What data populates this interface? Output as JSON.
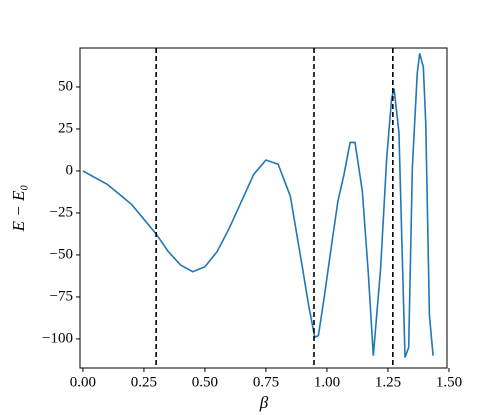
{
  "chart_data": {
    "type": "line",
    "x_label": "β",
    "y_label": "E − E₀",
    "x": [
      0,
      0.1,
      0.2,
      0.3,
      0.35,
      0.4,
      0.45,
      0.5,
      0.55,
      0.6,
      0.65,
      0.7,
      0.75,
      0.8,
      0.85,
      0.9,
      0.925,
      0.95,
      0.965,
      0.99,
      1.02,
      1.045,
      1.07,
      1.095,
      1.115,
      1.145,
      1.17,
      1.19,
      1.22,
      1.245,
      1.265,
      1.275,
      1.295,
      1.32,
      1.335,
      1.35,
      1.37,
      1.38,
      1.395,
      1.405,
      1.42,
      1.435
    ],
    "series": [
      {
        "color": "#1f77b4",
        "values": [
          0,
          -8,
          -20,
          -37.5,
          -48,
          -56,
          -60,
          -57,
          -48,
          -34,
          -18,
          -2,
          6.5,
          4,
          -15,
          -58,
          -80,
          -99,
          -98,
          -74,
          -43,
          -18,
          -2,
          17,
          17,
          -12,
          -62,
          -110,
          -58,
          8,
          43,
          49,
          23,
          -111,
          -105,
          2,
          58,
          70,
          62,
          28,
          -86,
          -110
        ]
      }
    ],
    "vlines": [
      0.3,
      0.947,
      1.27
    ],
    "vline_color": "#000000",
    "xlim": [
      -0.012,
      1.492
    ],
    "ylim": [
      -117.3,
      73.2
    ],
    "xticks": [
      {
        "value": 0,
        "label": "0.00"
      },
      {
        "value": 0.25,
        "label": "0.25"
      },
      {
        "value": 0.5,
        "label": "0.50"
      },
      {
        "value": 0.75,
        "label": "0.75"
      },
      {
        "value": 1,
        "label": "1.00"
      },
      {
        "value": 1.25,
        "label": "1.25"
      },
      {
        "value": 1.5,
        "label": "1.50"
      }
    ],
    "yticks": [
      {
        "value": -100,
        "label": "−100"
      },
      {
        "value": -75,
        "label": "−75"
      },
      {
        "value": -50,
        "label": "−50"
      },
      {
        "value": -25,
        "label": "−25"
      },
      0,
      25,
      50
    ],
    "grid": false
  }
}
